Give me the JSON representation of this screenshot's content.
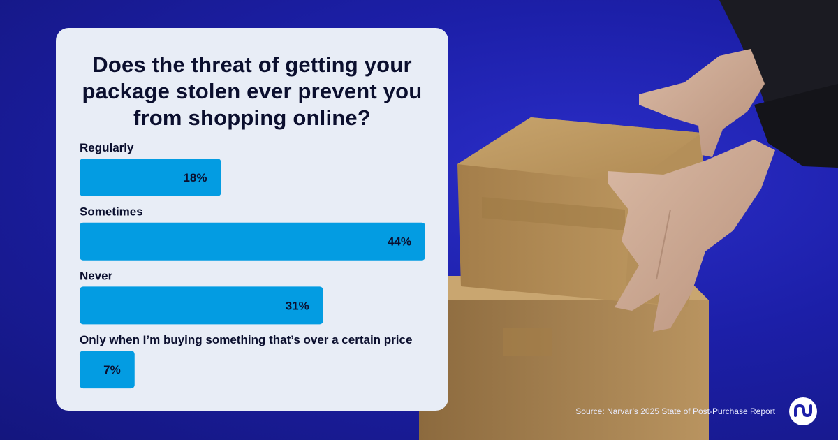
{
  "chart_data": {
    "type": "bar",
    "orientation": "horizontal",
    "title": "Does the threat of getting your package stolen ever prevent you from shopping online?",
    "categories": [
      "Regularly",
      "Sometimes",
      "Never",
      "Only when I’m buying something that’s over a certain price"
    ],
    "values": [
      18,
      44,
      31,
      7
    ],
    "value_labels": [
      "18%",
      "44%",
      "31%",
      "7%"
    ],
    "unit": "%",
    "xlim": [
      0,
      44
    ],
    "grid": false,
    "legend": "none"
  },
  "colors": {
    "bar": "#039ce2",
    "card": "#e8edf6",
    "text_dark": "#0b0f2e",
    "background": "#1c1fa8"
  },
  "footer": {
    "source": "Source: Narvar’s 2025 State of Post-Purchase Report"
  },
  "logo": {
    "icon": "narvar-logo-icon"
  }
}
